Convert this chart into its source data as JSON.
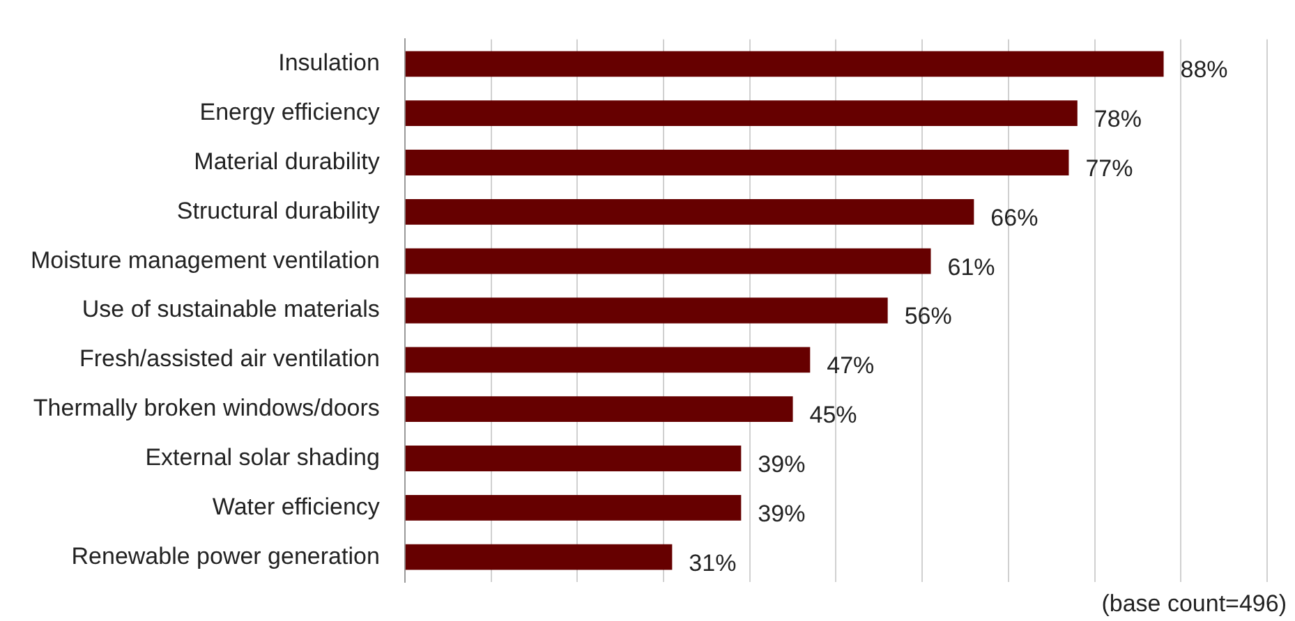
{
  "chart_data": {
    "type": "bar",
    "orientation": "horizontal",
    "categories": [
      "Insulation",
      "Energy efficiency",
      "Material durability",
      "Structural durability",
      "Moisture management ventilation",
      "Use of sustainable materials",
      "Fresh/assisted air ventilation",
      "Thermally broken windows/doors",
      "External solar shading",
      "Water efficiency",
      "Renewable power generation"
    ],
    "values": [
      88,
      78,
      77,
      66,
      61,
      56,
      47,
      45,
      39,
      39,
      31
    ],
    "value_labels": [
      "88%",
      "78%",
      "77%",
      "66%",
      "61%",
      "56%",
      "47%",
      "45%",
      "39%",
      "39%",
      "31%"
    ],
    "color": "#660000",
    "xlim": [
      0,
      100
    ],
    "xticks": [
      {
        "value": 0,
        "label": null
      },
      {
        "value": 10,
        "label": null
      },
      {
        "value": 20,
        "label": null
      },
      {
        "value": 30,
        "label": null
      },
      {
        "value": 40,
        "label": null
      },
      {
        "value": 50,
        "label": null
      },
      {
        "value": 60,
        "label": null
      },
      {
        "value": 70,
        "label": null
      },
      {
        "value": 80,
        "label": null
      },
      {
        "value": 90,
        "label": null
      },
      {
        "value": 100,
        "label": null
      }
    ],
    "tick_labels": "y",
    "grid": "x",
    "legend": false,
    "annotations": [
      "(base count=496)"
    ]
  }
}
